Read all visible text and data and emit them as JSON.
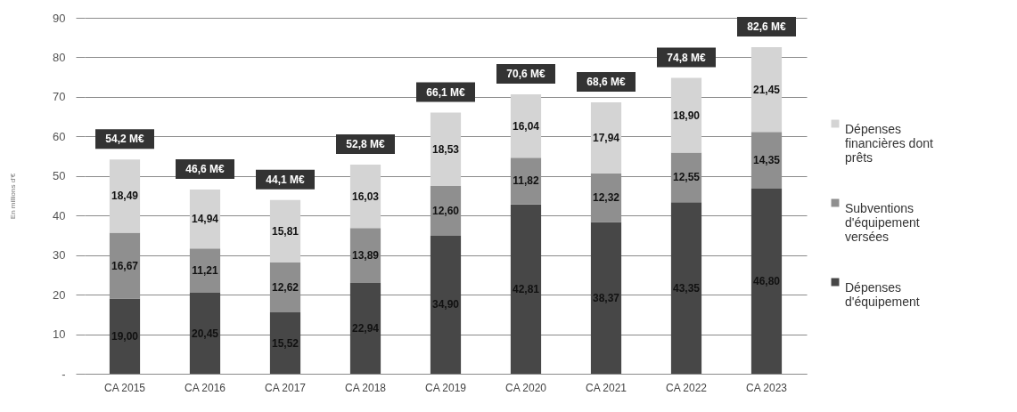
{
  "chart_data": {
    "type": "bar",
    "stacked": true,
    "ylabel": "En millions d'€",
    "categories": [
      "CA 2015",
      "CA 2016",
      "CA 2017",
      "CA 2018",
      "CA 2019",
      "CA 2020",
      "CA 2021",
      "CA 2022",
      "CA 2023"
    ],
    "series": [
      {
        "name": "Dépenses d'équipement",
        "color": "#474747",
        "values": [
          19.0,
          20.45,
          15.52,
          22.94,
          34.9,
          42.81,
          38.37,
          43.35,
          46.8
        ],
        "value_labels": [
          "19,00",
          "20,45",
          "15,52",
          "22,94",
          "34,90",
          "42,81",
          "38,37",
          "43,35",
          "46,80"
        ]
      },
      {
        "name": "Subventions d'équipement versées",
        "color": "#8f8f8f",
        "values": [
          16.67,
          11.21,
          12.62,
          13.89,
          12.6,
          11.82,
          12.32,
          12.55,
          14.35
        ],
        "value_labels": [
          "16,67",
          "11,21",
          "12,62",
          "13,89",
          "12,60",
          "11,82",
          "12,32",
          "12,55",
          "14,35"
        ]
      },
      {
        "name": "Dépenses financières dont prêts",
        "color": "#d4d4d4",
        "values": [
          18.49,
          14.94,
          15.81,
          16.03,
          18.53,
          16.04,
          17.94,
          18.9,
          21.45
        ],
        "value_labels": [
          "18,49",
          "14,94",
          "15,81",
          "16,03",
          "18,53",
          "16,04",
          "17,94",
          "18,90",
          "21,45"
        ]
      }
    ],
    "totals": [
      "54,2 M€",
      "46,6 M€",
      "44,1 M€",
      "52,8 M€",
      "66,1 M€",
      "70,6 M€",
      "68,6 M€",
      "74,8 M€",
      "82,6 M€"
    ],
    "ylim": [
      0,
      90
    ],
    "yticks": [
      {
        "value": 0,
        "label": "-"
      },
      10,
      20,
      30,
      40,
      50,
      60,
      70,
      80,
      90
    ],
    "grid": "y",
    "legend": "right"
  }
}
